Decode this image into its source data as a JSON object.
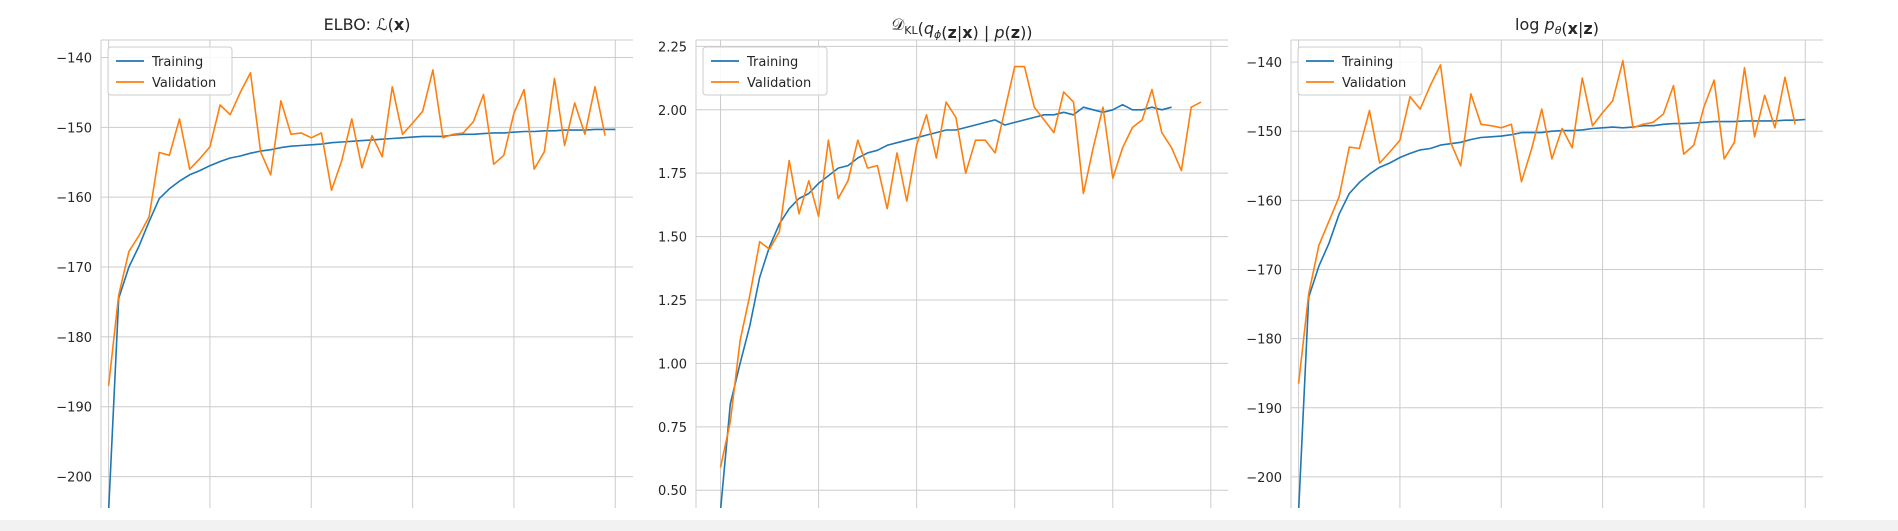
{
  "figure": {
    "background": "#ffffff",
    "grid_color": "#cccccc",
    "text_color": "#262626"
  },
  "chart_data": [
    {
      "type": "line",
      "title": "ELBO: ℒ(x)",
      "title_parts": [
        {
          "t": "ELBO: ",
          "style": "normal"
        },
        {
          "t": "ℒ",
          "style": "italic"
        },
        {
          "t": "(",
          "style": "normal"
        },
        {
          "t": "x",
          "style": "bold"
        },
        {
          "t": ")",
          "style": "normal"
        }
      ],
      "xlabel": "",
      "ylabel": "",
      "xlim": [
        -0.75,
        51.75
      ],
      "ylim": [
        -204.5,
        -137.5
      ],
      "yticks": [
        -140,
        -150,
        -160,
        -170,
        -180,
        -190,
        -200
      ],
      "ytick_labels": [
        "−140",
        "−150",
        "−160",
        "−170",
        "−180",
        "−190",
        "−200"
      ],
      "xgrid": [
        0,
        10,
        20,
        30,
        40,
        50
      ],
      "grid": true,
      "legend": "top-left",
      "series": [
        {
          "name": "Training",
          "color": "#1f77b4",
          "values": [
            -205.0,
            -174.5,
            -170.0,
            -167.0,
            -163.5,
            -160.2,
            -158.8,
            -157.7,
            -156.8,
            -156.2,
            -155.5,
            -154.9,
            -154.4,
            -154.1,
            -153.7,
            -153.4,
            -153.2,
            -152.9,
            -152.7,
            -152.6,
            -152.5,
            -152.4,
            -152.2,
            -152.1,
            -152.0,
            -151.9,
            -151.8,
            -151.7,
            -151.6,
            -151.5,
            -151.4,
            -151.3,
            -151.3,
            -151.3,
            -151.1,
            -151.0,
            -151.0,
            -150.9,
            -150.8,
            -150.8,
            -150.7,
            -150.6,
            -150.6,
            -150.5,
            -150.5,
            -150.4,
            -150.4,
            -150.4,
            -150.3,
            -150.3,
            -150.3
          ]
        },
        {
          "name": "Validation",
          "color": "#ff7f0e",
          "values": [
            -187.0,
            -174.0,
            -167.8,
            -165.5,
            -162.8,
            -153.6,
            -154.0,
            -148.8,
            -156.0,
            -154.5,
            -152.8,
            -146.8,
            -148.2,
            -145.0,
            -142.2,
            -153.5,
            -156.8,
            -146.2,
            -151.0,
            -150.8,
            -151.5,
            -150.8,
            -159.0,
            -154.8,
            -148.8,
            -155.8,
            -151.2,
            -154.2,
            -144.2,
            -151.0,
            -149.4,
            -147.7,
            -141.8,
            -151.5,
            -151.0,
            -150.8,
            -149.2,
            -145.3,
            -155.3,
            -154.0,
            -148.0,
            -144.6,
            -156.0,
            -153.5,
            -143.0,
            -152.6,
            -146.5,
            -151.0,
            -144.2,
            -151.2
          ]
        }
      ]
    },
    {
      "type": "line",
      "title": "𝒟_KL(q_ϕ(z|x) | p(z))",
      "title_parts": [
        {
          "t": "𝒟",
          "style": "normal"
        },
        {
          "t": "KL",
          "style": "sub"
        },
        {
          "t": "(",
          "style": "normal"
        },
        {
          "t": "q",
          "style": "italic"
        },
        {
          "t": "ϕ",
          "style": "sub-italic"
        },
        {
          "t": "(",
          "style": "normal"
        },
        {
          "t": "z",
          "style": "bold"
        },
        {
          "t": "|",
          "style": "normal"
        },
        {
          "t": "x",
          "style": "bold"
        },
        {
          "t": ") | ",
          "style": "normal"
        },
        {
          "t": "p",
          "style": "italic"
        },
        {
          "t": "(",
          "style": "normal"
        },
        {
          "t": "z",
          "style": "bold"
        },
        {
          "t": "))",
          "style": "normal"
        }
      ],
      "xlabel": "",
      "ylabel": "",
      "xlim": [
        -2.5,
        51.75
      ],
      "ylim": [
        0.43,
        2.275
      ],
      "yticks": [
        2.25,
        2.0,
        1.75,
        1.5,
        1.25,
        1.0,
        0.75,
        0.5
      ],
      "ytick_labels": [
        "2.25",
        "2.00",
        "1.75",
        "1.50",
        "1.25",
        "1.00",
        "0.75",
        "0.50"
      ],
      "xgrid": [
        0,
        10,
        20,
        30,
        40,
        50
      ],
      "grid": true,
      "legend": "top-left",
      "series": [
        {
          "name": "Training",
          "color": "#1f77b4",
          "values": [
            0.42,
            0.84,
            1.0,
            1.15,
            1.34,
            1.46,
            1.55,
            1.61,
            1.65,
            1.67,
            1.71,
            1.74,
            1.77,
            1.78,
            1.81,
            1.83,
            1.84,
            1.86,
            1.87,
            1.88,
            1.89,
            1.9,
            1.91,
            1.92,
            1.92,
            1.93,
            1.94,
            1.95,
            1.96,
            1.94,
            1.95,
            1.96,
            1.97,
            1.98,
            1.98,
            1.99,
            1.98,
            2.01,
            2.0,
            1.99,
            2.0,
            2.02,
            2.0,
            2.0,
            2.01,
            2.0,
            2.01
          ]
        },
        {
          "name": "Validation",
          "color": "#ff7f0e",
          "values": [
            0.59,
            0.77,
            1.09,
            1.27,
            1.48,
            1.45,
            1.52,
            1.8,
            1.59,
            1.72,
            1.58,
            1.88,
            1.65,
            1.72,
            1.88,
            1.77,
            1.78,
            1.61,
            1.83,
            1.64,
            1.86,
            1.98,
            1.81,
            2.03,
            1.97,
            1.75,
            1.88,
            1.88,
            1.83,
            2.0,
            2.17,
            2.17,
            2.01,
            1.96,
            1.91,
            2.07,
            2.03,
            1.67,
            1.85,
            2.01,
            1.73,
            1.85,
            1.93,
            1.96,
            2.08,
            1.91,
            1.85,
            1.76,
            2.01,
            2.03
          ]
        }
      ]
    },
    {
      "type": "line",
      "title": "log p_θ(x|z)",
      "title_parts": [
        {
          "t": "log ",
          "style": "normal"
        },
        {
          "t": "p",
          "style": "italic"
        },
        {
          "t": "θ",
          "style": "sub-italic"
        },
        {
          "t": "(",
          "style": "normal"
        },
        {
          "t": "x",
          "style": "bold"
        },
        {
          "t": "|",
          "style": "normal"
        },
        {
          "t": "z",
          "style": "bold"
        },
        {
          "t": ")",
          "style": "normal"
        }
      ],
      "xlabel": "",
      "ylabel": "",
      "xlim": [
        -0.75,
        51.75
      ],
      "ylim": [
        -204.5,
        -136.8
      ],
      "yticks": [
        -140,
        -150,
        -160,
        -170,
        -180,
        -190,
        -200
      ],
      "ytick_labels": [
        "−140",
        "−150",
        "−160",
        "−170",
        "−180",
        "−190",
        "−200"
      ],
      "xgrid": [
        0,
        10,
        20,
        30,
        40,
        50
      ],
      "grid": true,
      "legend": "top-left",
      "series": [
        {
          "name": "Training",
          "color": "#1f77b4",
          "values": [
            -205.0,
            -174.0,
            -169.5,
            -166.2,
            -162.0,
            -159.0,
            -157.4,
            -156.2,
            -155.2,
            -154.6,
            -153.8,
            -153.2,
            -152.7,
            -152.5,
            -152.0,
            -151.8,
            -151.6,
            -151.2,
            -150.9,
            -150.8,
            -150.7,
            -150.5,
            -150.2,
            -150.2,
            -150.2,
            -150.0,
            -149.9,
            -149.9,
            -149.8,
            -149.6,
            -149.5,
            -149.4,
            -149.5,
            -149.4,
            -149.2,
            -149.2,
            -149.0,
            -148.9,
            -148.9,
            -148.8,
            -148.7,
            -148.6,
            -148.6,
            -148.6,
            -148.5,
            -148.5,
            -148.5,
            -148.5,
            -148.4,
            -148.4,
            -148.3
          ]
        },
        {
          "name": "Validation",
          "color": "#ff7f0e",
          "values": [
            -186.5,
            -173.5,
            -166.5,
            -163.0,
            -159.5,
            -152.3,
            -152.5,
            -147.0,
            -154.6,
            -153.0,
            -151.3,
            -145.0,
            -146.8,
            -143.4,
            -140.4,
            -151.6,
            -155.0,
            -144.6,
            -149.0,
            -149.2,
            -149.5,
            -149.0,
            -157.3,
            -152.5,
            -146.8,
            -154.0,
            -149.6,
            -152.4,
            -142.3,
            -149.2,
            -147.3,
            -145.6,
            -139.8,
            -149.5,
            -149.0,
            -148.7,
            -147.5,
            -143.4,
            -153.3,
            -152.0,
            -146.5,
            -142.6,
            -154.0,
            -151.6,
            -140.8,
            -150.8,
            -144.8,
            -149.5,
            -142.2,
            -149.0
          ]
        }
      ]
    }
  ]
}
